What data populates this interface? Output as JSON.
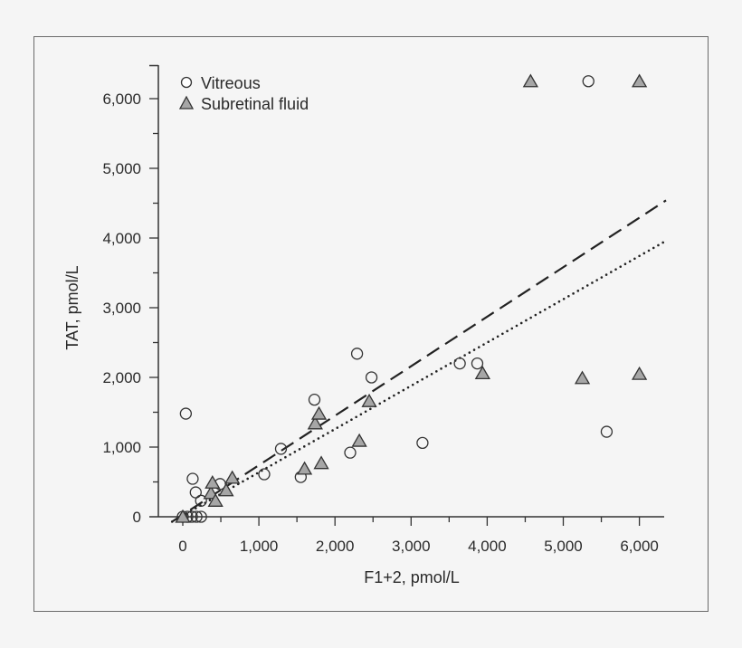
{
  "chart_data": {
    "type": "scatter",
    "title": "",
    "xlabel": "F1+2, pmol/L",
    "ylabel": "TAT, pmol/L",
    "xlim": [
      -300,
      6350
    ],
    "ylim": [
      0,
      6300
    ],
    "xticks": [
      0,
      1000,
      2000,
      3000,
      4000,
      5000,
      6000
    ],
    "xtick_labels": [
      "0",
      "1,000",
      "2,000",
      "3,000",
      "4,000",
      "5,000",
      "6,000"
    ],
    "yticks": [
      0,
      1000,
      2000,
      3000,
      4000,
      5000,
      6000
    ],
    "ytick_labels": [
      "0",
      "1,000",
      "2,000",
      "3,000",
      "4,000",
      "5,000",
      "6,000"
    ],
    "grid": false,
    "legend_position": "top-left",
    "series": [
      {
        "name": "Vitreous",
        "marker": "circle",
        "color": "#ffffff",
        "points": [
          [
            0,
            0
          ],
          [
            60,
            0
          ],
          [
            120,
            0
          ],
          [
            180,
            0
          ],
          [
            240,
            0
          ],
          [
            40,
            1480
          ],
          [
            130,
            545
          ],
          [
            170,
            350
          ],
          [
            240,
            230
          ],
          [
            490,
            470
          ],
          [
            1070,
            610
          ],
          [
            1290,
            975
          ],
          [
            1550,
            570
          ],
          [
            1730,
            1680
          ],
          [
            2200,
            920
          ],
          [
            2290,
            2340
          ],
          [
            2480,
            2000
          ],
          [
            3150,
            1060
          ],
          [
            3640,
            2200
          ],
          [
            3870,
            2200
          ],
          [
            5570,
            1220
          ],
          [
            5330,
            6250
          ]
        ]
      },
      {
        "name": "Subretinal fluid",
        "marker": "triangle",
        "color": "#a6a6a6",
        "points": [
          [
            0,
            0
          ],
          [
            370,
            340
          ],
          [
            390,
            490
          ],
          [
            430,
            230
          ],
          [
            570,
            380
          ],
          [
            650,
            560
          ],
          [
            1600,
            690
          ],
          [
            1740,
            1340
          ],
          [
            1790,
            1480
          ],
          [
            1820,
            770
          ],
          [
            2320,
            1090
          ],
          [
            2450,
            1660
          ],
          [
            3940,
            2060
          ],
          [
            5250,
            1990
          ],
          [
            6000,
            2050
          ],
          [
            4570,
            6250
          ],
          [
            6000,
            6250
          ]
        ]
      }
    ],
    "fit_lines": [
      {
        "style": "dashed",
        "x": [
          -140,
          6350
        ],
        "y": [
          -70,
          4540
        ]
      },
      {
        "style": "dotted",
        "x": [
          -140,
          6350
        ],
        "y": [
          -70,
          3960
        ]
      }
    ]
  }
}
